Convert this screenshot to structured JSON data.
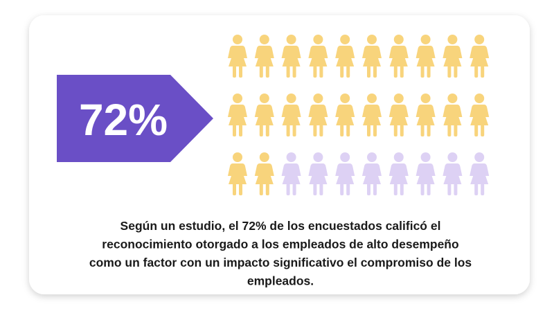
{
  "chart_data": {
    "type": "pictogram",
    "value": 72,
    "value_label": "72%",
    "total_icons": 30,
    "filled_icons": 22,
    "icons_per_row": 10,
    "filled_color": "#f8d47c",
    "empty_color": "#ddd1f4",
    "badge_color": "#6a4fc6",
    "caption_lines": [
      "Según un estudio, el 72% de los encuestados calificó el",
      "reconocimiento otorgado a los empleados de alto desempeño",
      "como un factor con un impacto significativo el compromiso de los",
      "empleados."
    ]
  }
}
